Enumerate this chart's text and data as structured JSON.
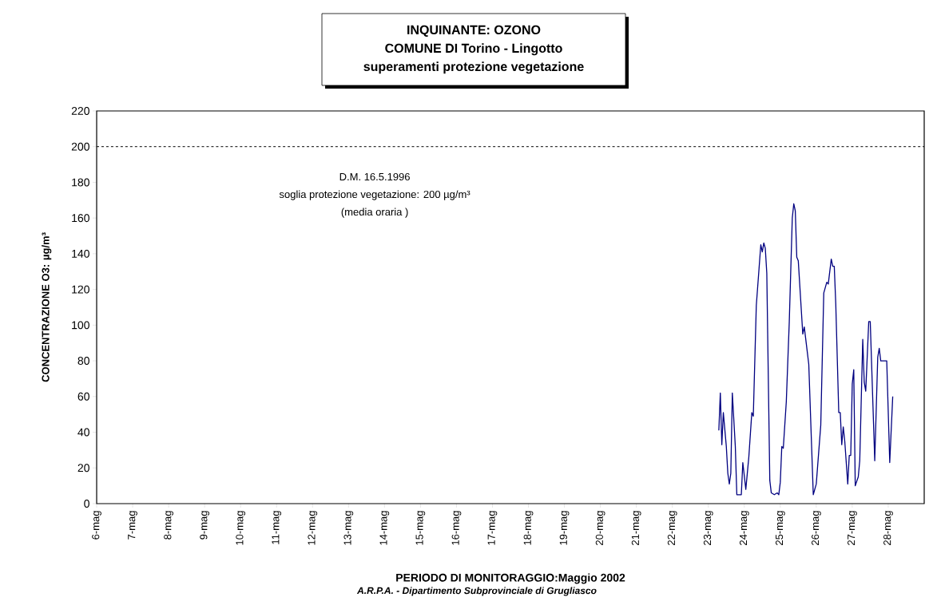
{
  "chart_data": {
    "type": "line",
    "title": "INQUINANTE: OZONO",
    "subtitle": "COMUNE DI Torino - Lingotto",
    "xlabel": "PERIODO DI MONITORAGGIO:Maggio 2002",
    "ylabel": "CONCENTRAZIONE O3: µg/m³",
    "annotations": [
      "superamenti protezione vegetazione",
      "D.M. 16.5.1996",
      "soglia protezione vegetazione: 200 µg/m³",
      "(media oraria )",
      "*A.R.P.A. - Dipartimento Subprovinciale di Grugliasco*"
    ],
    "x": [
      "2002-05-23T07:00",
      "2002-05-23T08:00",
      "2002-05-23T09:00",
      "2002-05-23T10:00",
      "2002-05-23T12:00",
      "2002-05-23T13:00",
      "2002-05-23T14:00",
      "2002-05-23T15:00",
      "2002-05-23T16:00",
      "2002-05-23T18:00",
      "2002-05-23T19:00",
      "2002-05-23T22:00",
      "2002-05-23T23:00",
      "2002-05-24T01:00",
      "2002-05-24T03:00",
      "2002-05-24T05:00",
      "2002-05-24T06:00",
      "2002-05-24T08:00",
      "2002-05-24T11:00",
      "2002-05-24T12:00",
      "2002-05-24T13:00",
      "2002-05-24T14:00",
      "2002-05-24T15:00",
      "2002-05-24T17:00",
      "2002-05-24T18:00",
      "2002-05-24T20:00",
      "2002-05-24T22:00",
      "2002-05-24T23:00",
      "2002-05-25T00:00",
      "2002-05-25T01:00",
      "2002-05-25T02:00",
      "2002-05-25T04:00",
      "2002-05-25T06:00",
      "2002-05-25T08:00",
      "2002-05-25T09:00",
      "2002-05-25T10:00",
      "2002-05-25T11:00",
      "2002-05-25T12:00",
      "2002-05-25T15:00",
      "2002-05-25T16:00",
      "2002-05-25T18:00",
      "2002-05-25T19:00",
      "2002-05-25T22:00",
      "2002-05-26T00:00",
      "2002-05-26T03:00",
      "2002-05-26T05:00",
      "2002-05-26T07:00",
      "2002-05-26T08:00",
      "2002-05-26T10:00",
      "2002-05-26T11:00",
      "2002-05-26T12:00",
      "2002-05-26T13:00",
      "2002-05-26T15:00",
      "2002-05-26T16:00",
      "2002-05-26T17:00",
      "2002-05-26T18:00",
      "2002-05-26T19:00",
      "2002-05-26T21:00",
      "2002-05-26T22:00",
      "2002-05-26T23:00",
      "2002-05-27T00:00",
      "2002-05-27T01:00",
      "2002-05-27T02:00",
      "2002-05-27T04:00",
      "2002-05-27T05:00",
      "2002-05-27T07:00",
      "2002-05-27T08:00",
      "2002-05-27T09:00",
      "2002-05-27T11:00",
      "2002-05-27T12:00",
      "2002-05-27T15:00",
      "2002-05-27T17:00",
      "2002-05-27T18:00",
      "2002-05-27T19:00",
      "2002-05-27T20:00",
      "2002-05-27T21:00",
      "2002-05-27T23:00",
      "2002-05-28T01:00",
      "2002-05-28T03:00"
    ],
    "series": [
      {
        "color": "#000080",
        "values": [
          41,
          62,
          33,
          51,
          32,
          17,
          11,
          17,
          62,
          32,
          5,
          5,
          23,
          8,
          26,
          51,
          49,
          111,
          145,
          141,
          146,
          143,
          129,
          13,
          6,
          5,
          6,
          5,
          12,
          32,
          31,
          57,
          102,
          160,
          168,
          164,
          138,
          136,
          95,
          99,
          85,
          78,
          5,
          11,
          44,
          118,
          124,
          123,
          137,
          133,
          133,
          112,
          51,
          51,
          33,
          43,
          35,
          11,
          27,
          27,
          67,
          75,
          10,
          15,
          24,
          92,
          68,
          63,
          102,
          102,
          24,
          82,
          87,
          80,
          80,
          80,
          80,
          23,
          60
        ]
      }
    ],
    "xlim": [
      "2002-05-06",
      "2002-05-29"
    ],
    "xticks": [
      {
        "value": "2002-05-06",
        "label": "6-mag"
      },
      {
        "value": "2002-05-07",
        "label": "7-mag"
      },
      {
        "value": "2002-05-08",
        "label": "8-mag"
      },
      {
        "value": "2002-05-09",
        "label": "9-mag"
      },
      {
        "value": "2002-05-10",
        "label": "10-mag"
      },
      {
        "value": "2002-05-11",
        "label": "11-mag"
      },
      {
        "value": "2002-05-12",
        "label": "12-mag"
      },
      {
        "value": "2002-05-13",
        "label": "13-mag"
      },
      {
        "value": "2002-05-14",
        "label": "14-mag"
      },
      {
        "value": "2002-05-15",
        "label": "15-mag"
      },
      {
        "value": "2002-05-16",
        "label": "16-mag"
      },
      {
        "value": "2002-05-17",
        "label": "17-mag"
      },
      {
        "value": "2002-05-18",
        "label": "18-mag"
      },
      {
        "value": "2002-05-19",
        "label": "19-mag"
      },
      {
        "value": "2002-05-20",
        "label": "20-mag"
      },
      {
        "value": "2002-05-21",
        "label": "21-mag"
      },
      {
        "value": "2002-05-22",
        "label": "22-mag"
      },
      {
        "value": "2002-05-23",
        "label": "23-mag"
      },
      {
        "value": "2002-05-24",
        "label": "24-mag"
      },
      {
        "value": "2002-05-25",
        "label": "25-mag"
      },
      {
        "value": "2002-05-26",
        "label": "26-mag"
      },
      {
        "value": "2002-05-27",
        "label": "27-mag"
      },
      {
        "value": "2002-05-28",
        "label": "28-mag"
      }
    ],
    "ylim": [
      0,
      220
    ],
    "yticks": [
      0,
      20,
      40,
      60,
      80,
      100,
      120,
      140,
      160,
      180,
      200,
      220
    ],
    "ref_lines": [
      {
        "axis": "y",
        "value": 200,
        "color": "#000000",
        "line_style": "dashed"
      }
    ],
    "grid": false,
    "marker": "none",
    "line_style": "solid"
  }
}
